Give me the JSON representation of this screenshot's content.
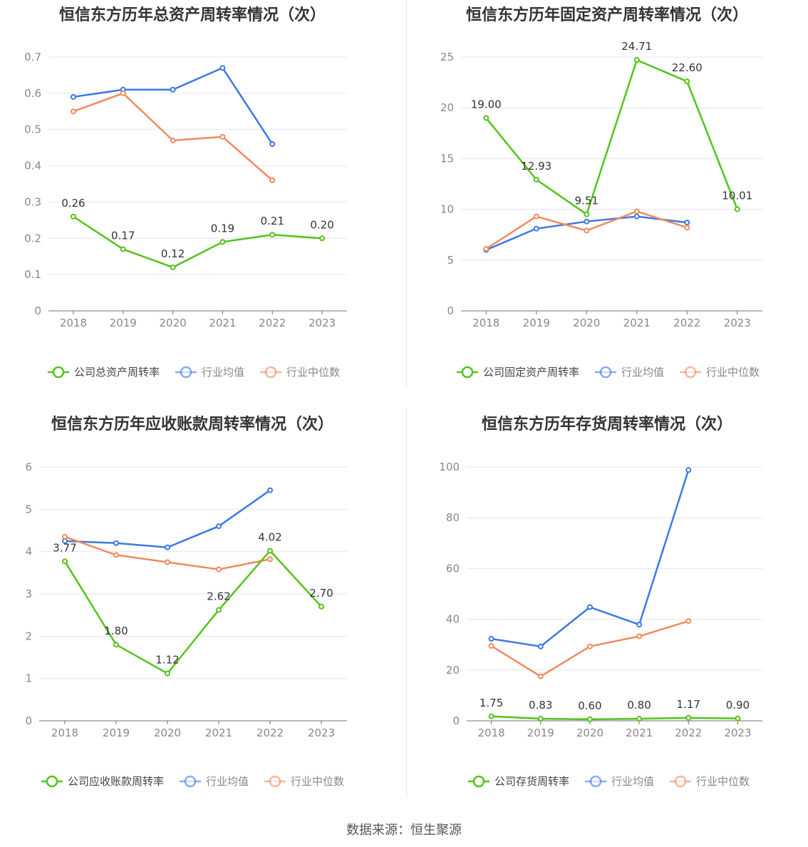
{
  "colors": {
    "company": "#52c41a",
    "industry_avg": "#3b78e7",
    "industry_median": "#f08a5d",
    "grid": "#e3e6ef",
    "axis_text": "#888888",
    "title": "#333333"
  },
  "legend_labels": {
    "avg": "行业均值",
    "median": "行业中位数"
  },
  "source": "数据来源：恒生聚源",
  "chart_data": [
    {
      "type": "line",
      "title": "恒信东方历年总资产周转率情况（次）",
      "categories": [
        "2018",
        "2019",
        "2020",
        "2021",
        "2022",
        "2023"
      ],
      "ylim": [
        0,
        0.7
      ],
      "yticks": [
        "0",
        "0.1",
        "0.2",
        "0.3",
        "0.4",
        "0.5",
        "0.6",
        "0.7"
      ],
      "series": [
        {
          "name": "公司总资产周转率",
          "role": "company",
          "values": [
            0.26,
            0.17,
            0.12,
            0.19,
            0.21,
            0.2
          ],
          "labels": [
            "0.26",
            "0.17",
            "0.12",
            "0.19",
            "0.21",
            "0.20"
          ]
        },
        {
          "name": "行业均值",
          "role": "avg",
          "values": [
            0.59,
            0.61,
            0.61,
            0.67,
            0.46,
            null
          ]
        },
        {
          "name": "行业中位数",
          "role": "median",
          "values": [
            0.55,
            0.6,
            0.47,
            0.48,
            0.36,
            null
          ]
        }
      ],
      "legend": "bottom",
      "grid": true
    },
    {
      "type": "line",
      "title": "恒信东方历年固定资产周转率情况（次）",
      "categories": [
        "2018",
        "2019",
        "2020",
        "2021",
        "2022",
        "2023"
      ],
      "ylim": [
        0,
        25
      ],
      "yticks": [
        "0",
        "5",
        "10",
        "15",
        "20",
        "25"
      ],
      "series": [
        {
          "name": "公司固定资产周转率",
          "role": "company",
          "values": [
            19.0,
            12.93,
            9.51,
            24.71,
            22.6,
            10.01
          ],
          "labels": [
            "19.00",
            "12.93",
            "9.51",
            "24.71",
            "22.60",
            "10.01"
          ]
        },
        {
          "name": "行业均值",
          "role": "avg",
          "values": [
            6.0,
            8.1,
            8.8,
            9.3,
            8.7,
            null
          ]
        },
        {
          "name": "行业中位数",
          "role": "median",
          "values": [
            6.1,
            9.3,
            7.9,
            9.8,
            8.2,
            null
          ]
        }
      ],
      "legend": "bottom",
      "grid": true
    },
    {
      "type": "line",
      "title": "恒信东方历年应收账款周转率情况（次）",
      "categories": [
        "2018",
        "2019",
        "2020",
        "2021",
        "2022",
        "2023"
      ],
      "ylim": [
        0,
        6
      ],
      "yticks": [
        "0",
        "1",
        "2",
        "3",
        "4",
        "5",
        "6"
      ],
      "series": [
        {
          "name": "公司应收账款周转率",
          "role": "company",
          "values": [
            3.77,
            1.8,
            1.12,
            2.62,
            4.02,
            2.7
          ],
          "labels": [
            "3.77",
            "1.80",
            "1.12",
            "2.62",
            "4.02",
            "2.70"
          ]
        },
        {
          "name": "行业均值",
          "role": "avg",
          "values": [
            4.25,
            4.2,
            4.1,
            4.6,
            5.45,
            null
          ]
        },
        {
          "name": "行业中位数",
          "role": "median",
          "values": [
            4.35,
            3.92,
            3.75,
            3.58,
            3.82,
            null
          ]
        }
      ],
      "legend": "bottom",
      "grid": true
    },
    {
      "type": "line",
      "title": "恒信东方历年存货周转率情况（次）",
      "categories": [
        "2018",
        "2019",
        "2020",
        "2021",
        "2022",
        "2023"
      ],
      "ylim": [
        0,
        100
      ],
      "yticks": [
        "0",
        "20",
        "40",
        "60",
        "80",
        "100"
      ],
      "series": [
        {
          "name": "公司存货周转率",
          "role": "company",
          "values": [
            1.75,
            0.83,
            0.6,
            0.8,
            1.17,
            0.9
          ],
          "labels": [
            "1.75",
            "0.83",
            "0.60",
            "0.80",
            "1.17",
            "0.90"
          ]
        },
        {
          "name": "行业均值",
          "role": "avg",
          "values": [
            32.3,
            29.3,
            44.8,
            37.9,
            98.8,
            null
          ]
        },
        {
          "name": "行业中位数",
          "role": "median",
          "values": [
            29.5,
            17.5,
            29.3,
            33.3,
            39.3,
            null
          ]
        }
      ],
      "legend": "bottom",
      "grid": true
    }
  ]
}
